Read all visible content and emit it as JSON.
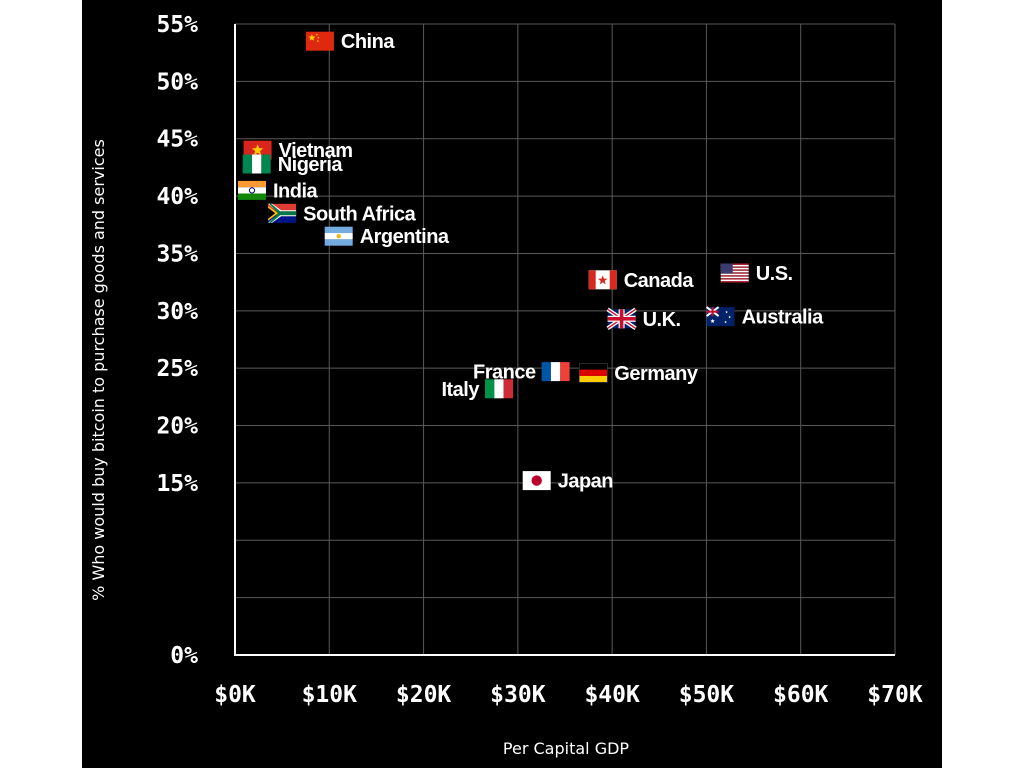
{
  "chart_data": {
    "type": "scatter",
    "xlabel": "Per Capital GDP",
    "ylabel": "% Who would buy bitcoin to purchase goods and services",
    "xlim": [
      0,
      70000
    ],
    "ylim": [
      0,
      55
    ],
    "x_ticks": [
      {
        "value": 0,
        "label": "$0K"
      },
      {
        "value": 10000,
        "label": "$10K"
      },
      {
        "value": 20000,
        "label": "$20K"
      },
      {
        "value": 30000,
        "label": "$30K"
      },
      {
        "value": 40000,
        "label": "$40K"
      },
      {
        "value": 50000,
        "label": "$50K"
      },
      {
        "value": 60000,
        "label": "$60K"
      },
      {
        "value": 70000,
        "label": "$70K"
      }
    ],
    "y_ticks": [
      {
        "value": 0,
        "label": "0%"
      },
      {
        "value": 15,
        "label": "15%"
      },
      {
        "value": 20,
        "label": "20%"
      },
      {
        "value": 25,
        "label": "25%"
      },
      {
        "value": 30,
        "label": "30%"
      },
      {
        "value": 35,
        "label": "35%"
      },
      {
        "value": 40,
        "label": "40%"
      },
      {
        "value": 45,
        "label": "45%"
      },
      {
        "value": 50,
        "label": "50%"
      },
      {
        "value": 55,
        "label": "55%"
      }
    ],
    "grid": true,
    "points": [
      {
        "country": "China",
        "flag": "china-flag-icon",
        "x": 9000,
        "y": 53.5,
        "label_side": "right"
      },
      {
        "country": "Vietnam",
        "flag": "vietnam-flag-icon",
        "x": 2400,
        "y": 44,
        "label_side": "right"
      },
      {
        "country": "Nigeria",
        "flag": "nigeria-flag-icon",
        "x": 2300,
        "y": 42.8,
        "label_side": "right"
      },
      {
        "country": "India",
        "flag": "india-flag-icon",
        "x": 1800,
        "y": 40.5,
        "label_side": "right"
      },
      {
        "country": "South Africa",
        "flag": "south-africa-flag-icon",
        "x": 5000,
        "y": 38.5,
        "label_side": "right"
      },
      {
        "country": "Argentina",
        "flag": "argentina-flag-icon",
        "x": 11000,
        "y": 36.5,
        "label_side": "right"
      },
      {
        "country": "Canada",
        "flag": "canada-flag-icon",
        "x": 39000,
        "y": 32.7,
        "label_side": "right"
      },
      {
        "country": "U.S.",
        "flag": "usa-flag-icon",
        "x": 53000,
        "y": 33.3,
        "label_side": "right"
      },
      {
        "country": "U.K.",
        "flag": "uk-flag-icon",
        "x": 41000,
        "y": 29.3,
        "label_side": "right"
      },
      {
        "country": "Australia",
        "flag": "australia-flag-icon",
        "x": 51500,
        "y": 29.5,
        "label_side": "right"
      },
      {
        "country": "France",
        "flag": "france-flag-icon",
        "x": 34000,
        "y": 24.7,
        "label_side": "left"
      },
      {
        "country": "Germany",
        "flag": "germany-flag-icon",
        "x": 38000,
        "y": 24.6,
        "label_side": "right"
      },
      {
        "country": "Italy",
        "flag": "italy-flag-icon",
        "x": 28000,
        "y": 23.2,
        "label_side": "left"
      },
      {
        "country": "Japan",
        "flag": "japan-flag-icon",
        "x": 32000,
        "y": 15.2,
        "label_side": "right"
      }
    ]
  }
}
